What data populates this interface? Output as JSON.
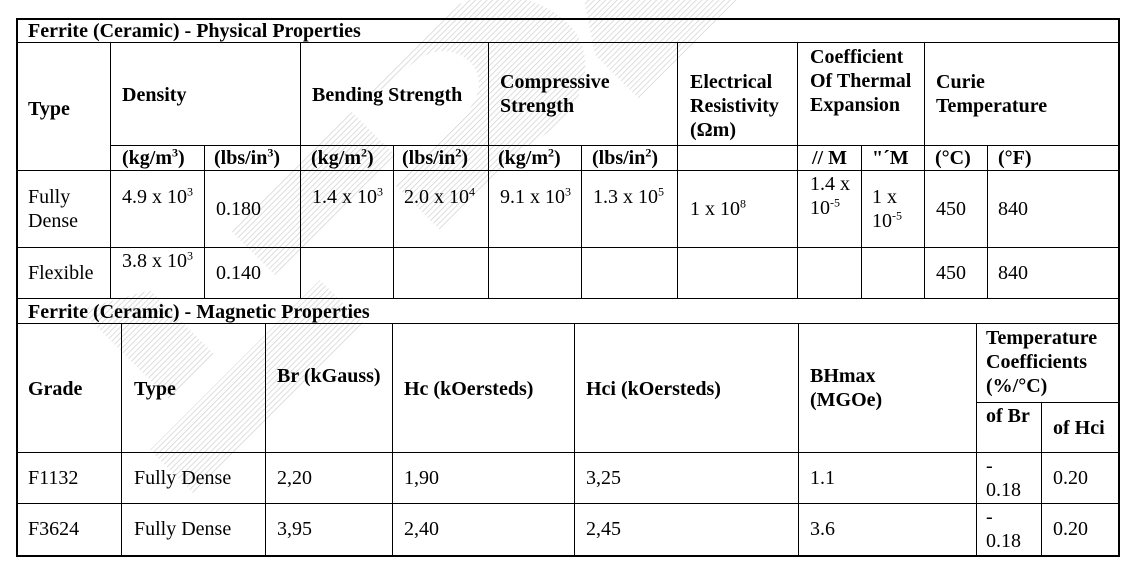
{
  "physical": {
    "title": "Ferrite (Ceramic) - Physical Properties",
    "headers": {
      "type": "Type",
      "density": "Density",
      "bending": "Bending Strength",
      "compressive": "Compressive Strength",
      "resistivity": "Electrical Resistivity (Ωm)",
      "thermal": "Coefficient Of Thermal Expansion",
      "curie": "Curie Temperature"
    },
    "units": {
      "kgm3": "(kg/m",
      "kgm3_sup": "3",
      "lbsin3": "(lbs/in",
      "lbsin3_sup": "3",
      "kgm2_a": "(kg/m",
      "kgm2_a_sup": "2",
      "lbsin2_a": "(lbs/in",
      "lbsin2_a_sup": "2",
      "kgm2_b": "(kg/m",
      "kgm2_b_sup": "2",
      "lbsin2_b": "(lbs/in",
      "lbsin2_b_sup": "2",
      "par": "// M",
      "perp": "\"´M",
      "celsius": "(°C)",
      "fahrenheit": "(°F)"
    },
    "rows": {
      "fully_dense": {
        "type": "Fully Dense",
        "density_kg": "4.9 x 10",
        "density_kg_exp": "3",
        "density_lbs": "0.180",
        "bending_kg": "1.4 x 10",
        "bending_kg_exp": "3",
        "bending_lbs": "2.0 x 10",
        "bending_lbs_exp": "4",
        "compressive_kg": "9.1 x 10",
        "compressive_kg_exp": "3",
        "compressive_lbs": "1.3 x 10",
        "compressive_lbs_exp": "5",
        "resistivity": "1 x 10",
        "resistivity_exp": "8",
        "thermal_par": "1.4 x 10",
        "thermal_par_exp": "-5",
        "thermal_perp": "1 x 10",
        "thermal_perp_exp": "-5",
        "curie_c": "450",
        "curie_f": "840"
      },
      "flexible": {
        "type": "Flexible",
        "density_kg": "3.8 x 10",
        "density_kg_exp": "3",
        "density_lbs": "0.140",
        "curie_c": "450",
        "curie_f": "840"
      }
    }
  },
  "magnetic": {
    "title": "Ferrite (Ceramic) - Magnetic Properties",
    "headers": {
      "grade": "Grade",
      "type": "Type",
      "br": "Br (kGauss)",
      "hc": "Hc (kOersteds)",
      "hci": "Hci (kOersteds)",
      "bhmax": "BHmax (MGOe)",
      "temp": "Temperature Coefficients (%/°C)",
      "of_br": "of Br",
      "of_hci": "of Hci"
    },
    "rows": [
      {
        "grade": "F1132",
        "type": "Fully Dense",
        "br": "2,20",
        "hc": "1,90",
        "hci": "3,25",
        "bhmax": "1.1",
        "coef_br": "- 0.18",
        "coef_hci": "0.20"
      },
      {
        "grade": "F3624",
        "type": "Fully Dense",
        "br": "3,95",
        "hc": "2,40",
        "hci": "2,45",
        "bhmax": "3.6",
        "coef_br": "- 0.18",
        "coef_hci": "0.20"
      }
    ]
  }
}
